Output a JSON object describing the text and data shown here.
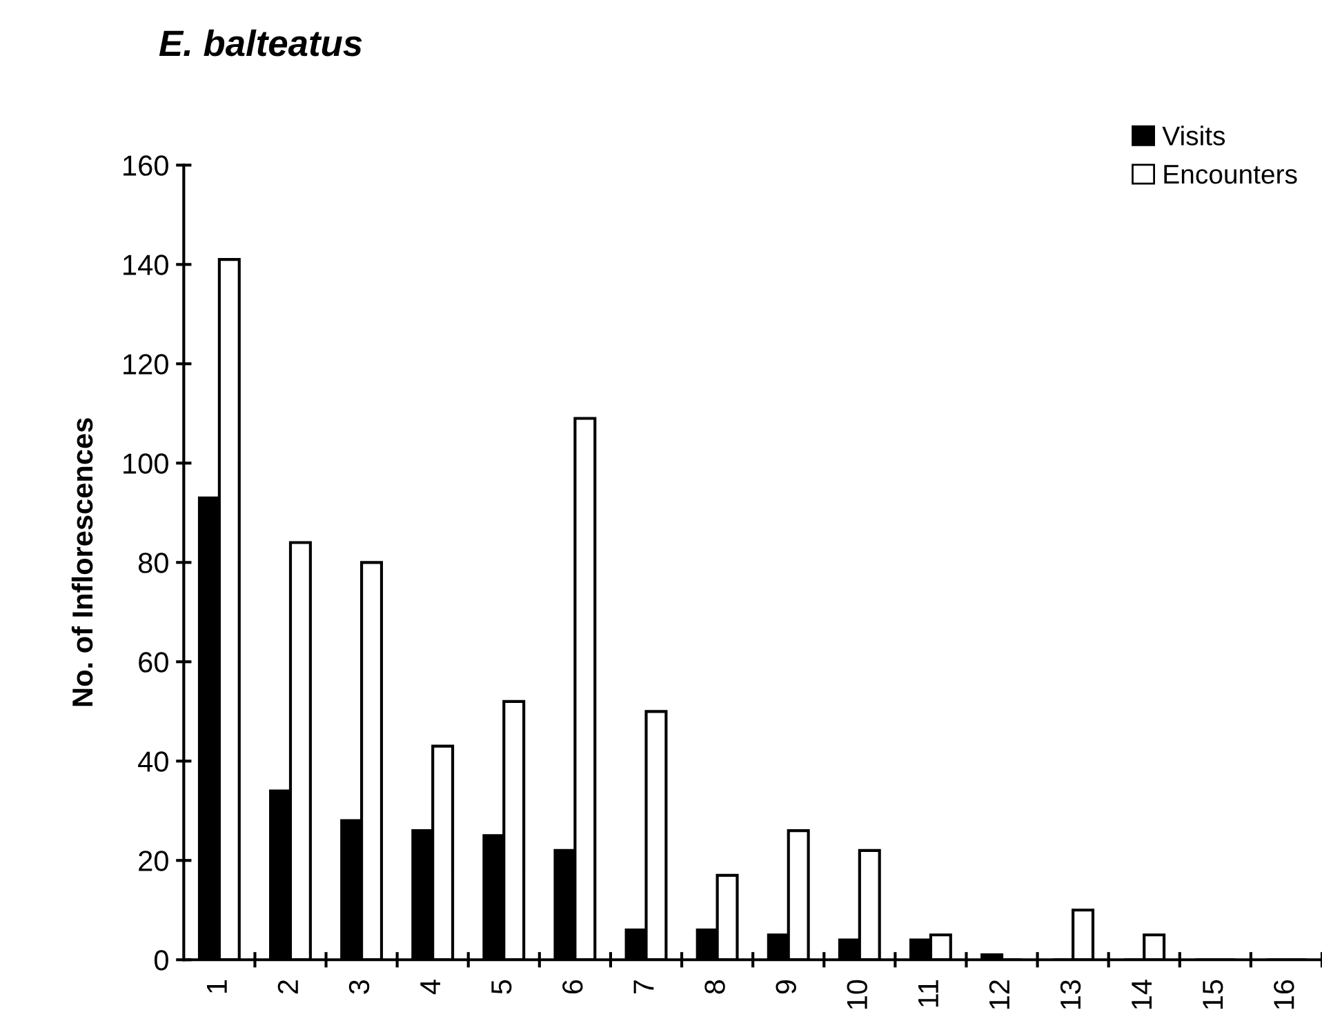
{
  "chart_data": {
    "type": "bar",
    "title": "E. balteatus",
    "ylabel": "No. of Inflorescences",
    "categories": [
      "1",
      "2",
      "3",
      "4",
      "5",
      "6",
      "7",
      "8",
      "9",
      "10",
      "11",
      "12",
      "13",
      "14",
      "15",
      "16"
    ],
    "series": [
      {
        "name": "Visits",
        "color": "#000000",
        "values": [
          93,
          34,
          28,
          26,
          25,
          22,
          6,
          6,
          5,
          4,
          4,
          1,
          0,
          0,
          0,
          0
        ]
      },
      {
        "name": "Encounters",
        "color": "#ffffff",
        "values": [
          141,
          84,
          80,
          43,
          52,
          109,
          50,
          17,
          26,
          22,
          5,
          0,
          10,
          5,
          0,
          0
        ]
      }
    ],
    "ylim": [
      0,
      160
    ],
    "yticks": [
      0,
      20,
      40,
      60,
      80,
      100,
      120,
      140,
      160
    ],
    "grid": false,
    "legend": "top right"
  }
}
